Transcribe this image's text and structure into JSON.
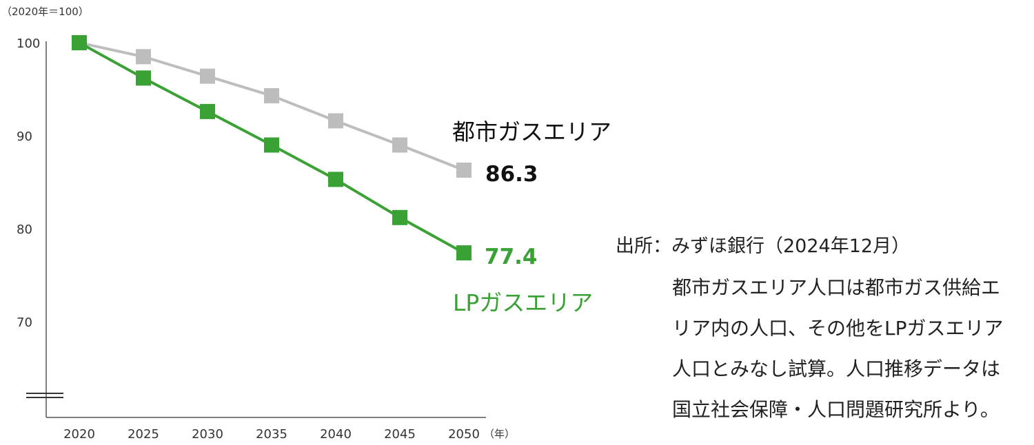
{
  "chart_data": {
    "type": "line",
    "y_unit_label": "（2020年＝100）",
    "x_unit_label": "（年）",
    "x": [
      "2020",
      "2025",
      "2030",
      "2035",
      "2040",
      "2045",
      "2050"
    ],
    "y_ticks": [
      "100",
      "90",
      "80",
      "70"
    ],
    "ylim": [
      62,
      100
    ],
    "axis_break": true,
    "grid": false,
    "series": [
      {
        "name": "都市ガスエリア",
        "color": "#bdbdbd",
        "values": [
          100,
          98.5,
          96.4,
          94.3,
          91.6,
          89.0,
          86.3
        ],
        "end_label": "86.3",
        "end_label_color": "#111111"
      },
      {
        "name": "LPガスエリア",
        "color": "#3aa135",
        "values": [
          100,
          96.2,
          92.6,
          89.0,
          85.3,
          81.2,
          77.4
        ],
        "end_label": "77.4",
        "end_label_color": "#3aa135"
      }
    ]
  },
  "source": {
    "line": "出所：みずほ銀行（2024年12月）",
    "note_lines": [
      "都市ガスエリア人口は都市ガス供給エ",
      "リア内の人口、その他をLPガスエリア",
      "人口とみなし試算。人口推移データは",
      "国立社会保障・人口問題研究所より。"
    ]
  }
}
